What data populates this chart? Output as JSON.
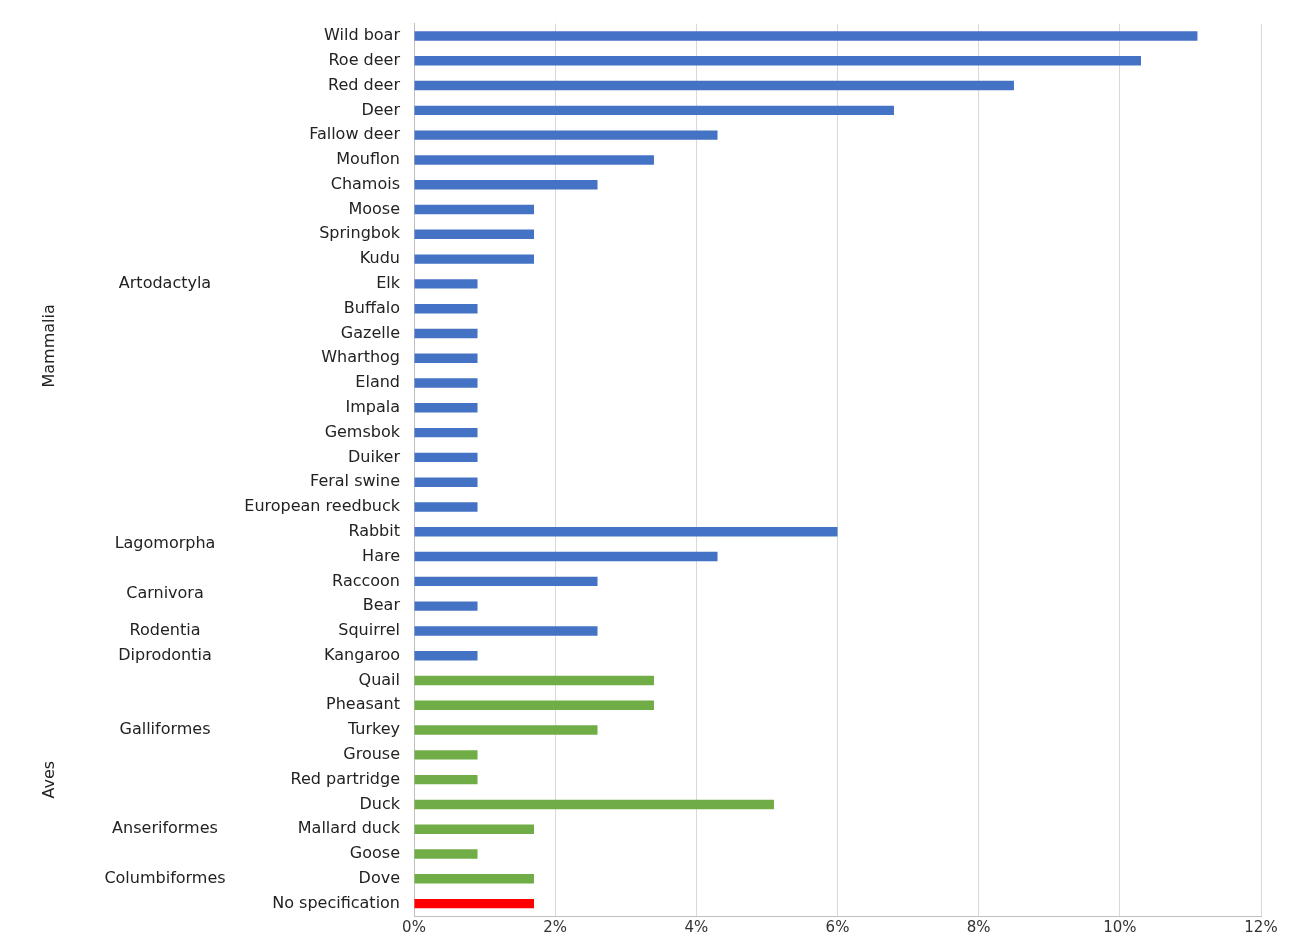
{
  "chart_data": {
    "type": "bar",
    "orientation": "horizontal",
    "categories": [
      "Wild boar",
      "Roe deer",
      "Red deer",
      "Deer",
      "Fallow deer",
      "Mouflon",
      "Chamois",
      "Moose",
      "Springbok",
      "Kudu",
      "Elk",
      "Buffalo",
      "Gazelle",
      "Wharthog",
      "Eland",
      "Impala",
      "Gemsbok",
      "Duiker",
      "Feral swine",
      "European reedbuck",
      "Rabbit",
      "Hare",
      "Raccoon",
      "Bear",
      "Squirrel",
      "Kangaroo",
      "Quail",
      "Pheasant",
      "Turkey",
      "Grouse",
      "Red partridge",
      "Duck",
      "Mallard duck",
      "Goose",
      "Dove",
      "No specification"
    ],
    "values": [
      11.1,
      10.3,
      8.5,
      6.8,
      4.3,
      3.4,
      2.6,
      1.7,
      1.7,
      1.7,
      0.9,
      0.9,
      0.9,
      0.9,
      0.9,
      0.9,
      0.9,
      0.9,
      0.9,
      0.9,
      6.0,
      4.3,
      2.6,
      0.9,
      2.6,
      0.9,
      3.4,
      3.4,
      2.6,
      0.9,
      0.9,
      5.1,
      1.7,
      0.9,
      1.7,
      1.7
    ],
    "colors": [
      "#4472c4",
      "#4472c4",
      "#4472c4",
      "#4472c4",
      "#4472c4",
      "#4472c4",
      "#4472c4",
      "#4472c4",
      "#4472c4",
      "#4472c4",
      "#4472c4",
      "#4472c4",
      "#4472c4",
      "#4472c4",
      "#4472c4",
      "#4472c4",
      "#4472c4",
      "#4472c4",
      "#4472c4",
      "#4472c4",
      "#4472c4",
      "#4472c4",
      "#4472c4",
      "#4472c4",
      "#4472c4",
      "#4472c4",
      "#70ad47",
      "#70ad47",
      "#70ad47",
      "#70ad47",
      "#70ad47",
      "#70ad47",
      "#70ad47",
      "#70ad47",
      "#70ad47",
      "#ff0000"
    ],
    "xlim": [
      0,
      12
    ],
    "xticks": [
      {
        "value": 0,
        "label": "0%"
      },
      {
        "value": 2,
        "label": "2%"
      },
      {
        "value": 4,
        "label": "4%"
      },
      {
        "value": 6,
        "label": "6%"
      },
      {
        "value": 8,
        "label": "8%"
      },
      {
        "value": 10,
        "label": "10%"
      },
      {
        "value": 12,
        "label": "12%"
      }
    ],
    "grid": "x",
    "legend": false,
    "annotations": [
      "Mammalia",
      "Aves",
      "Artodactyla",
      "Lagomorpha",
      "Carnivora",
      "Rodentia",
      "Diprodontia",
      "Galliformes",
      "Anseriformes",
      "Columbiformes"
    ]
  }
}
